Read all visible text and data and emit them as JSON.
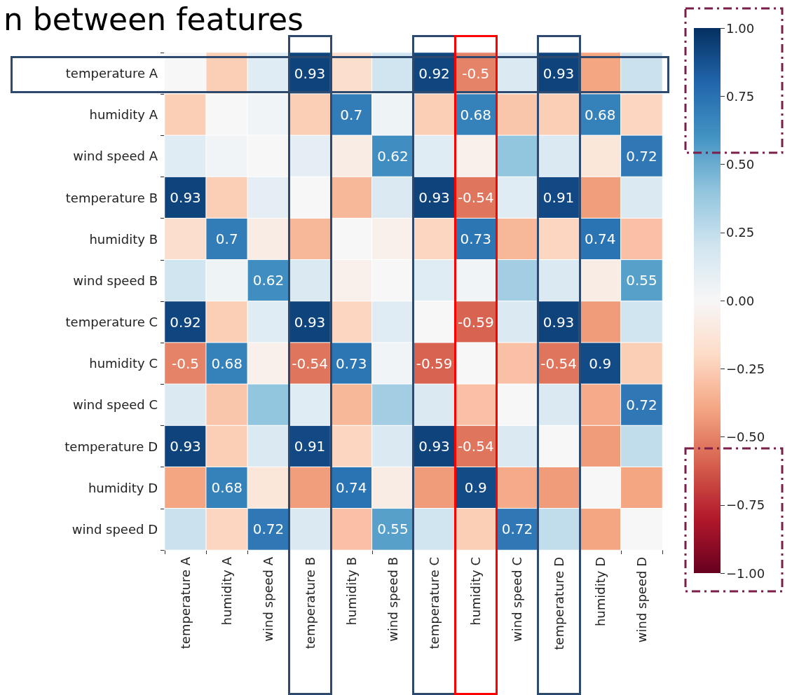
{
  "chart_data": {
    "type": "heatmap",
    "title": "n between features",
    "categories": [
      "temperature A",
      "humidity A",
      "wind speed A",
      "temperature B",
      "humidity B",
      "wind speed B",
      "temperature C",
      "humidity C",
      "wind speed C",
      "temperature D",
      "humidity D",
      "wind speed D"
    ],
    "y_categories": [
      "temperature A",
      "humidity A",
      "wind speed A",
      "temperature B",
      "humidity B",
      "wind speed B",
      "temperature C",
      "humidity C",
      "wind speed C",
      "temperature D",
      "humidity D",
      "wind speed D"
    ],
    "cells": [
      [
        0,
        -0.25,
        0.12,
        0.93,
        -0.18,
        0.2,
        0.92,
        -0.5,
        0.15,
        0.93,
        -0.4,
        0.22
      ],
      [
        -0.25,
        0,
        0.03,
        -0.25,
        0.7,
        0.05,
        -0.25,
        0.68,
        -0.28,
        -0.25,
        0.68,
        -0.22
      ],
      [
        0.12,
        0.03,
        0,
        0.1,
        -0.08,
        0.62,
        0.12,
        -0.05,
        0.4,
        0.15,
        -0.12,
        0.72
      ],
      [
        0.93,
        -0.25,
        0.1,
        0,
        -0.33,
        0.15,
        0.93,
        -0.54,
        0.12,
        0.91,
        -0.42,
        0.15
      ],
      [
        -0.18,
        0.7,
        -0.08,
        -0.33,
        0,
        -0.05,
        -0.22,
        0.73,
        -0.33,
        -0.22,
        0.74,
        -0.3
      ],
      [
        0.2,
        0.05,
        0.62,
        0.15,
        -0.05,
        0,
        0.12,
        0.03,
        0.35,
        0.15,
        -0.08,
        0.55
      ],
      [
        0.92,
        -0.25,
        0.12,
        0.93,
        -0.22,
        0.12,
        0,
        -0.59,
        0.15,
        0.93,
        -0.43,
        0.2
      ],
      [
        -0.5,
        0.68,
        -0.05,
        -0.54,
        0.73,
        0.03,
        -0.59,
        0,
        -0.3,
        -0.54,
        0.9,
        -0.25
      ],
      [
        0.15,
        -0.28,
        0.4,
        0.12,
        -0.33,
        0.35,
        0.15,
        -0.3,
        0,
        0.15,
        -0.38,
        0.72
      ],
      [
        0.93,
        -0.25,
        0.15,
        0.91,
        -0.22,
        0.15,
        0.93,
        -0.54,
        0.15,
        0,
        -0.43,
        0.25
      ],
      [
        -0.4,
        0.68,
        -0.12,
        -0.42,
        0.74,
        -0.08,
        -0.43,
        0.9,
        -0.38,
        -0.43,
        0,
        -0.4
      ],
      [
        0.22,
        -0.22,
        0.72,
        0.15,
        -0.3,
        0.55,
        0.2,
        -0.25,
        0.72,
        0.25,
        -0.4,
        0
      ]
    ],
    "cell_labels": [
      [
        null,
        null,
        null,
        "0.93",
        null,
        null,
        "0.92",
        "-0.5",
        null,
        "0.93",
        null,
        null
      ],
      [
        null,
        null,
        null,
        null,
        "0.7",
        null,
        null,
        "0.68",
        null,
        null,
        "0.68",
        null
      ],
      [
        null,
        null,
        null,
        null,
        null,
        "0.62",
        null,
        null,
        null,
        null,
        null,
        "0.72"
      ],
      [
        "0.93",
        null,
        null,
        null,
        null,
        null,
        "0.93",
        "-0.54",
        null,
        "0.91",
        null,
        null
      ],
      [
        null,
        "0.7",
        null,
        null,
        null,
        null,
        null,
        "0.73",
        null,
        null,
        "0.74",
        null
      ],
      [
        null,
        null,
        "0.62",
        null,
        null,
        null,
        null,
        null,
        null,
        null,
        null,
        "0.55"
      ],
      [
        "0.92",
        null,
        null,
        "0.93",
        null,
        null,
        null,
        "-0.59",
        null,
        "0.93",
        null,
        null
      ],
      [
        "-0.5",
        "0.68",
        null,
        "-0.54",
        "0.73",
        null,
        "-0.59",
        null,
        null,
        "-0.54",
        "0.9",
        null
      ],
      [
        null,
        null,
        null,
        null,
        null,
        null,
        null,
        null,
        null,
        null,
        null,
        "0.72"
      ],
      [
        "0.93",
        null,
        null,
        "0.91",
        null,
        null,
        "0.93",
        "-0.54",
        null,
        null,
        null,
        null
      ],
      [
        null,
        "0.68",
        null,
        null,
        "0.74",
        null,
        null,
        "0.9",
        null,
        null,
        null,
        null
      ],
      [
        null,
        null,
        "0.72",
        null,
        null,
        "0.55",
        null,
        null,
        "0.72",
        null,
        null,
        null
      ]
    ],
    "clim": [
      -1,
      1
    ],
    "cticks": [
      {
        "value": -1,
        "label": "−1.00"
      },
      {
        "value": -0.75,
        "label": "−0.75"
      },
      {
        "value": -0.5,
        "label": "−0.50"
      },
      {
        "value": -0.25,
        "label": "−0.25"
      },
      {
        "value": 0,
        "label": "0.00"
      },
      {
        "value": 0.25,
        "label": "0.25"
      },
      {
        "value": 0.5,
        "label": "0.50"
      },
      {
        "value": 0.75,
        "label": "0.75"
      },
      {
        "value": 1,
        "label": "1.00"
      }
    ]
  }
}
